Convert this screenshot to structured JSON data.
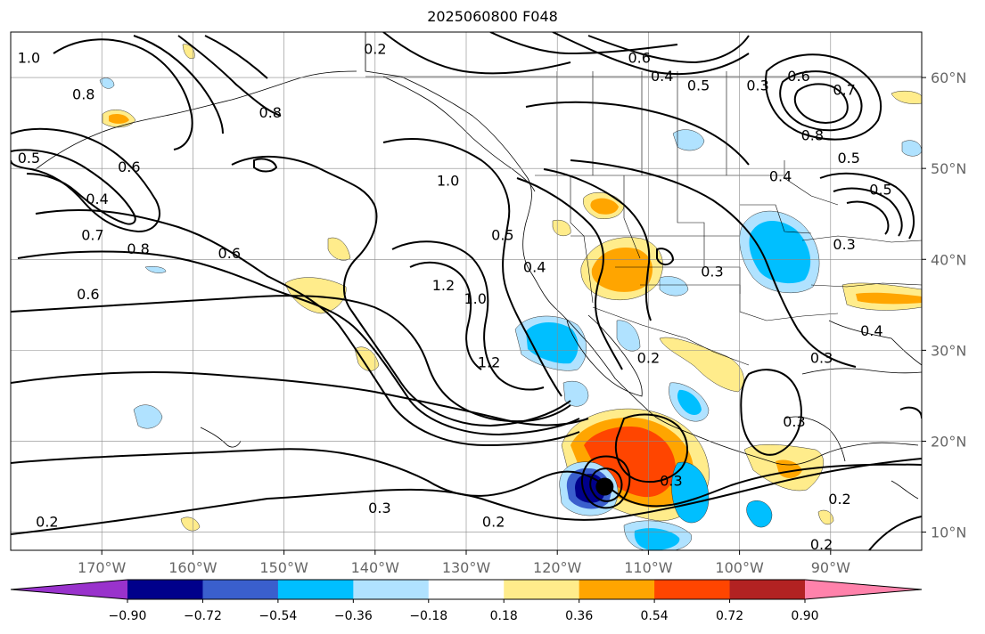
{
  "title": "2025060800 F048",
  "map": {
    "lon_range": [
      -180,
      -80
    ],
    "lat_range": [
      8,
      65
    ],
    "lon_ticks": [
      {
        "value": -170,
        "label": "170°W"
      },
      {
        "value": -160,
        "label": "160°W"
      },
      {
        "value": -150,
        "label": "150°W"
      },
      {
        "value": -140,
        "label": "140°W"
      },
      {
        "value": -130,
        "label": "130°W"
      },
      {
        "value": -120,
        "label": "120°W"
      },
      {
        "value": -110,
        "label": "110°W"
      },
      {
        "value": -100,
        "label": "100°W"
      },
      {
        "value": -90,
        "label": "90°W"
      }
    ],
    "lat_ticks": [
      {
        "value": 10,
        "label": "10°N"
      },
      {
        "value": 20,
        "label": "20°N"
      },
      {
        "value": 30,
        "label": "30°N"
      },
      {
        "value": 40,
        "label": "40°N"
      },
      {
        "value": 50,
        "label": "50°N"
      },
      {
        "value": 60,
        "label": "60°N"
      }
    ],
    "grid": true,
    "storm_marker": {
      "lon": -114.8,
      "lat": 15.0
    },
    "contour_labels": [
      {
        "text": "1.0",
        "lon": -178.0,
        "lat": 62.0
      },
      {
        "text": "0.8",
        "lon": -172.0,
        "lat": 58.0
      },
      {
        "text": "0.5",
        "lon": -178.0,
        "lat": 51.0
      },
      {
        "text": "0.6",
        "lon": -167.0,
        "lat": 50.0
      },
      {
        "text": "0.4",
        "lon": -170.5,
        "lat": 46.5
      },
      {
        "text": "0.7",
        "lon": -171.0,
        "lat": 42.5
      },
      {
        "text": "0.8",
        "lon": -166.0,
        "lat": 41.0
      },
      {
        "text": "0.6",
        "lon": -171.5,
        "lat": 36.0
      },
      {
        "text": "0.6",
        "lon": -156.0,
        "lat": 40.5
      },
      {
        "text": "0.2",
        "lon": -140.0,
        "lat": 63.0
      },
      {
        "text": "0.8",
        "lon": -151.5,
        "lat": 56.0
      },
      {
        "text": "1.0",
        "lon": -132.0,
        "lat": 48.5
      },
      {
        "text": "1.2",
        "lon": -132.5,
        "lat": 37.0
      },
      {
        "text": "1.0",
        "lon": -129.0,
        "lat": 35.5
      },
      {
        "text": "1.2",
        "lon": -127.5,
        "lat": 28.5
      },
      {
        "text": "0.5",
        "lon": -126.0,
        "lat": 42.5
      },
      {
        "text": "0.4",
        "lon": -122.5,
        "lat": 39.0
      },
      {
        "text": "0.6",
        "lon": -111.0,
        "lat": 62.0
      },
      {
        "text": "0.4",
        "lon": -108.5,
        "lat": 60.0
      },
      {
        "text": "0.5",
        "lon": -104.5,
        "lat": 59.0
      },
      {
        "text": "0.3",
        "lon": -98.0,
        "lat": 59.0
      },
      {
        "text": "0.6",
        "lon": -93.5,
        "lat": 60.0
      },
      {
        "text": "0.7",
        "lon": -88.5,
        "lat": 58.5
      },
      {
        "text": "0.8",
        "lon": -92.0,
        "lat": 53.5
      },
      {
        "text": "0.5",
        "lon": -88.0,
        "lat": 51.0
      },
      {
        "text": "0.4",
        "lon": -95.5,
        "lat": 49.0
      },
      {
        "text": "0.5",
        "lon": -84.5,
        "lat": 47.5
      },
      {
        "text": "0.3",
        "lon": -88.5,
        "lat": 41.5
      },
      {
        "text": "0.3",
        "lon": -103.0,
        "lat": 38.5
      },
      {
        "text": "0.4",
        "lon": -85.5,
        "lat": 32.0
      },
      {
        "text": "0.3",
        "lon": -91.0,
        "lat": 29.0
      },
      {
        "text": "0.3",
        "lon": -94.0,
        "lat": 22.0
      },
      {
        "text": "0.2",
        "lon": -110.0,
        "lat": 29.0
      },
      {
        "text": "0.3",
        "lon": -107.5,
        "lat": 15.5
      },
      {
        "text": "0.2",
        "lon": -89.0,
        "lat": 13.5
      },
      {
        "text": "0.3",
        "lon": -139.5,
        "lat": 12.5
      },
      {
        "text": "0.2",
        "lon": -127.0,
        "lat": 11.0
      },
      {
        "text": "0.2",
        "lon": -176.0,
        "lat": 11.0
      },
      {
        "text": "0.2",
        "lon": -91.0,
        "lat": 8.5
      }
    ]
  },
  "colorbar": {
    "colors": [
      "#9932CC",
      "#00008B",
      "#3A5FCD",
      "#00BFFF",
      "#B0E2FF",
      "#FFFFFF",
      "#FFEC8B",
      "#FFA500",
      "#FF4500",
      "#B22222",
      "#FF82AB"
    ],
    "boundaries": [
      -0.9,
      -0.72,
      -0.54,
      -0.36,
      -0.18,
      0.18,
      0.36,
      0.54,
      0.72,
      0.9
    ],
    "tick_labels": [
      "−0.90",
      "−0.72",
      "−0.54",
      "−0.36",
      "−0.18",
      "0.18",
      "0.36",
      "0.54",
      "0.72",
      "0.90"
    ],
    "extend": "both"
  }
}
